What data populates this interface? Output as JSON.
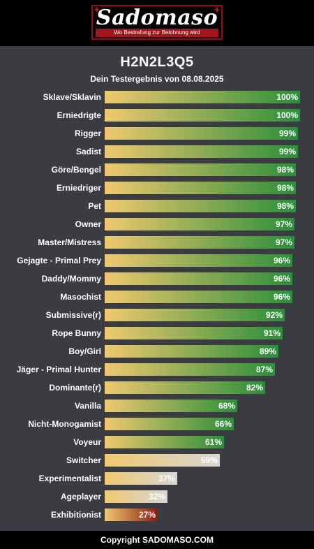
{
  "header": {
    "logo_text": "Sadomaso",
    "logo_tagline": "Wo Bestrafung zur Belohnung wird"
  },
  "result": {
    "code": "H2N2L3Q5",
    "subtitle": "Dein Testergebnis von 08.08.2025"
  },
  "colors": {
    "bar_start": "#f0c96e",
    "green_end": "#2a8f3a",
    "grey_end": "#d6d6d6",
    "red_end": "#8e1b12"
  },
  "results": [
    {
      "label": "Sklave/Sklavin",
      "value": 100,
      "pct": "100%",
      "tone": "green"
    },
    {
      "label": "Erniedrigte",
      "value": 100,
      "pct": "100%",
      "tone": "green"
    },
    {
      "label": "Rigger",
      "value": 99,
      "pct": "99%",
      "tone": "green"
    },
    {
      "label": "Sadist",
      "value": 99,
      "pct": "99%",
      "tone": "green"
    },
    {
      "label": "Göre/Bengel",
      "value": 98,
      "pct": "98%",
      "tone": "green"
    },
    {
      "label": "Erniedriger",
      "value": 98,
      "pct": "98%",
      "tone": "green"
    },
    {
      "label": "Pet",
      "value": 98,
      "pct": "98%",
      "tone": "green"
    },
    {
      "label": "Owner",
      "value": 97,
      "pct": "97%",
      "tone": "green"
    },
    {
      "label": "Master/Mistress",
      "value": 97,
      "pct": "97%",
      "tone": "green"
    },
    {
      "label": "Gejagte - Primal Prey",
      "value": 96,
      "pct": "96%",
      "tone": "green"
    },
    {
      "label": "Daddy/Mommy",
      "value": 96,
      "pct": "96%",
      "tone": "green"
    },
    {
      "label": "Masochist",
      "value": 96,
      "pct": "96%",
      "tone": "green"
    },
    {
      "label": "Submissive(r)",
      "value": 92,
      "pct": "92%",
      "tone": "green"
    },
    {
      "label": "Rope Bunny",
      "value": 91,
      "pct": "91%",
      "tone": "green"
    },
    {
      "label": "Boy/Girl",
      "value": 89,
      "pct": "89%",
      "tone": "green"
    },
    {
      "label": "Jäger - Primal Hunter",
      "value": 87,
      "pct": "87%",
      "tone": "green"
    },
    {
      "label": "Dominante(r)",
      "value": 82,
      "pct": "82%",
      "tone": "green"
    },
    {
      "label": "Vanilla",
      "value": 68,
      "pct": "68%",
      "tone": "green"
    },
    {
      "label": "Nicht-Monogamist",
      "value": 66,
      "pct": "66%",
      "tone": "green"
    },
    {
      "label": "Voyeur",
      "value": 61,
      "pct": "61%",
      "tone": "green"
    },
    {
      "label": "Switcher",
      "value": 59,
      "pct": "59%",
      "tone": "grey"
    },
    {
      "label": "Experimentalist",
      "value": 37,
      "pct": "37%",
      "tone": "grey"
    },
    {
      "label": "Ageplayer",
      "value": 32,
      "pct": "32%",
      "tone": "grey"
    },
    {
      "label": "Exhibitionist",
      "value": 27,
      "pct": "27%",
      "tone": "red"
    }
  ],
  "footer": {
    "copyright": "Copyright SADOMASO.COM"
  }
}
